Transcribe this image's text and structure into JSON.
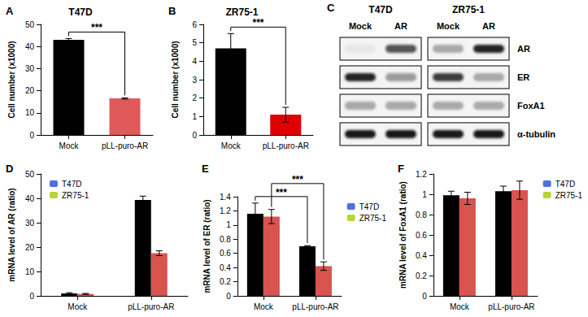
{
  "chart_data": [
    {
      "type": "bar",
      "panel": "A",
      "title": "T47D",
      "ylabel": "Cell number (x1000)",
      "categories": [
        "Mock",
        "pLL-puro-AR"
      ],
      "values": [
        43,
        16.5
      ],
      "errors": [
        0.6,
        0.3
      ],
      "colors": [
        "#000000",
        "#e05a5a"
      ],
      "ylim": [
        0,
        50
      ],
      "yticks": [
        0,
        10,
        20,
        30,
        40,
        50
      ],
      "grid": false,
      "significance": [
        {
          "between": [
            "Mock",
            "pLL-puro-AR"
          ],
          "text": "***"
        }
      ]
    },
    {
      "type": "bar",
      "panel": "B",
      "title": "ZR75-1",
      "ylabel": "Cell number (x1000)",
      "categories": [
        "Mock",
        "pLL-puro-AR"
      ],
      "values": [
        4.7,
        1.1
      ],
      "errors": [
        0.8,
        0.4
      ],
      "colors": [
        "#000000",
        "#e00000"
      ],
      "ylim": [
        0,
        6
      ],
      "yticks": [
        0,
        1,
        2,
        3,
        4,
        5,
        6
      ],
      "grid": false,
      "significance": [
        {
          "between": [
            "Mock",
            "pLL-puro-AR"
          ],
          "text": "***"
        }
      ]
    },
    {
      "type": "bar",
      "panel": "D",
      "ylabel": "mRNA level of AR (ratio)",
      "categories": [
        "Mock",
        "pLL-puro-AR"
      ],
      "series": [
        {
          "name": "T47D",
          "color": "#000000",
          "values": [
            1.0,
            39.3
          ],
          "errors": [
            0.3,
            1.6
          ]
        },
        {
          "name": "ZR75-1",
          "color": "#d9534f",
          "values": [
            0.8,
            17.5
          ],
          "errors": [
            0.2,
            1.0
          ]
        }
      ],
      "ylim": [
        0,
        50
      ],
      "yticks": [
        0,
        10,
        20,
        30,
        40,
        50
      ],
      "grid": false,
      "legend": "upper left"
    },
    {
      "type": "bar",
      "panel": "E",
      "ylabel": "mRNA level of ER (ratio)",
      "categories": [
        "Mock",
        "pLL-puro-AR"
      ],
      "series": [
        {
          "name": "T47D",
          "color": "#000000",
          "values": [
            1.16,
            0.7
          ],
          "errors": [
            0.15,
            0.01
          ]
        },
        {
          "name": "ZR75-1",
          "color": "#d9534f",
          "values": [
            1.12,
            0.42
          ],
          "errors": [
            0.1,
            0.06
          ]
        }
      ],
      "ylim": [
        0,
        1.4
      ],
      "yticks": [
        0,
        0.2,
        0.4,
        0.6,
        0.8,
        1,
        1.2,
        1.4
      ],
      "grid": false,
      "legend": "upper right",
      "significance": [
        {
          "series": "T47D",
          "between": [
            "Mock",
            "pLL-puro-AR"
          ],
          "text": "***"
        },
        {
          "series": "ZR75-1",
          "between": [
            "Mock",
            "pLL-puro-AR"
          ],
          "text": "***"
        }
      ]
    },
    {
      "type": "bar",
      "panel": "F",
      "ylabel": "mRNA level of FoxA1 (ratio)",
      "categories": [
        "Mock",
        "pLL-puro-AR"
      ],
      "series": [
        {
          "name": "T47D",
          "color": "#000000",
          "values": [
            0.99,
            1.03
          ],
          "errors": [
            0.04,
            0.05
          ]
        },
        {
          "name": "ZR75-1",
          "color": "#d9534f",
          "values": [
            0.96,
            1.04
          ],
          "errors": [
            0.06,
            0.09
          ]
        }
      ],
      "ylim": [
        0,
        1.2
      ],
      "yticks": [
        0,
        0.2,
        0.4,
        0.6,
        0.8,
        1,
        1.2
      ],
      "grid": false,
      "legend": "upper right"
    }
  ],
  "blot": {
    "panel": "C",
    "cell_lines": [
      {
        "name": "T47D",
        "lanes": [
          "Mock",
          "AR"
        ]
      },
      {
        "name": "ZR75-1",
        "lanes": [
          "Mock",
          "AR"
        ]
      }
    ],
    "rows": [
      {
        "label": "AR",
        "bands": [
          [
            0.05,
            0.7
          ],
          [
            0.3,
            0.9
          ]
        ]
      },
      {
        "label": "ER",
        "bands": [
          [
            0.9,
            0.4
          ],
          [
            0.8,
            0.3
          ]
        ]
      },
      {
        "label": "FoxA1",
        "bands": [
          [
            0.35,
            0.35
          ],
          [
            0.3,
            0.3
          ]
        ]
      },
      {
        "label": "α-tubulin",
        "bands": [
          [
            0.95,
            0.95
          ],
          [
            0.95,
            0.95
          ]
        ]
      }
    ]
  }
}
